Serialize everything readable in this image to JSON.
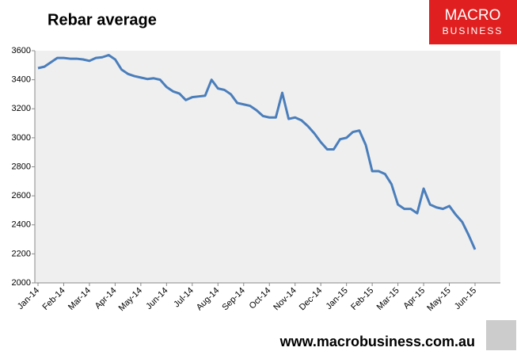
{
  "chart_data": {
    "type": "line",
    "title": "Rebar average",
    "categories": [
      "Jan-14",
      null,
      null,
      null,
      "Feb-14",
      null,
      null,
      null,
      "Mar-14",
      null,
      null,
      null,
      "Apr-14",
      null,
      null,
      null,
      "May-14",
      null,
      null,
      null,
      "Jun-14",
      null,
      null,
      null,
      "Jul-14",
      null,
      null,
      null,
      "Aug-14",
      null,
      null,
      null,
      "Sep-14",
      null,
      null,
      null,
      "Oct-14",
      null,
      null,
      null,
      "Nov-14",
      null,
      null,
      null,
      "Dec-14",
      null,
      null,
      null,
      "Jan-15",
      null,
      null,
      null,
      "Feb-15",
      null,
      null,
      null,
      "Mar-15",
      null,
      null,
      null,
      "Apr-15",
      null,
      null,
      null,
      "May-15",
      null,
      null,
      null,
      "Jun-15"
    ],
    "series": [
      {
        "name": "Rebar average",
        "color": "#4a7ebb",
        "values": [
          3480,
          3490,
          3520,
          3550,
          3550,
          3545,
          3545,
          3540,
          3530,
          3550,
          3555,
          3570,
          3540,
          3470,
          3440,
          3425,
          3415,
          3405,
          3410,
          3400,
          3350,
          3320,
          3305,
          3260,
          3280,
          3285,
          3290,
          3400,
          3340,
          3330,
          3300,
          3240,
          3230,
          3220,
          3190,
          3150,
          3140,
          3140,
          3310,
          3130,
          3140,
          3120,
          3080,
          3030,
          2970,
          2920,
          2920,
          2990,
          3000,
          3040,
          3050,
          2950,
          2770,
          2770,
          2750,
          2680,
          2540,
          2510,
          2510,
          2480,
          2650,
          2540,
          2520,
          2510,
          2530,
          2470,
          2420,
          2330,
          2230
        ]
      }
    ],
    "ylim": [
      2000,
      3600
    ],
    "yticks": [
      2000,
      2200,
      2400,
      2600,
      2800,
      3000,
      3200,
      3400,
      3600
    ],
    "grid": false,
    "plot_background": "#efefef"
  },
  "branding": {
    "logo_line1": "MACRO",
    "logo_line2": "BUSINESS",
    "url": "www.macrobusiness.com.au"
  }
}
